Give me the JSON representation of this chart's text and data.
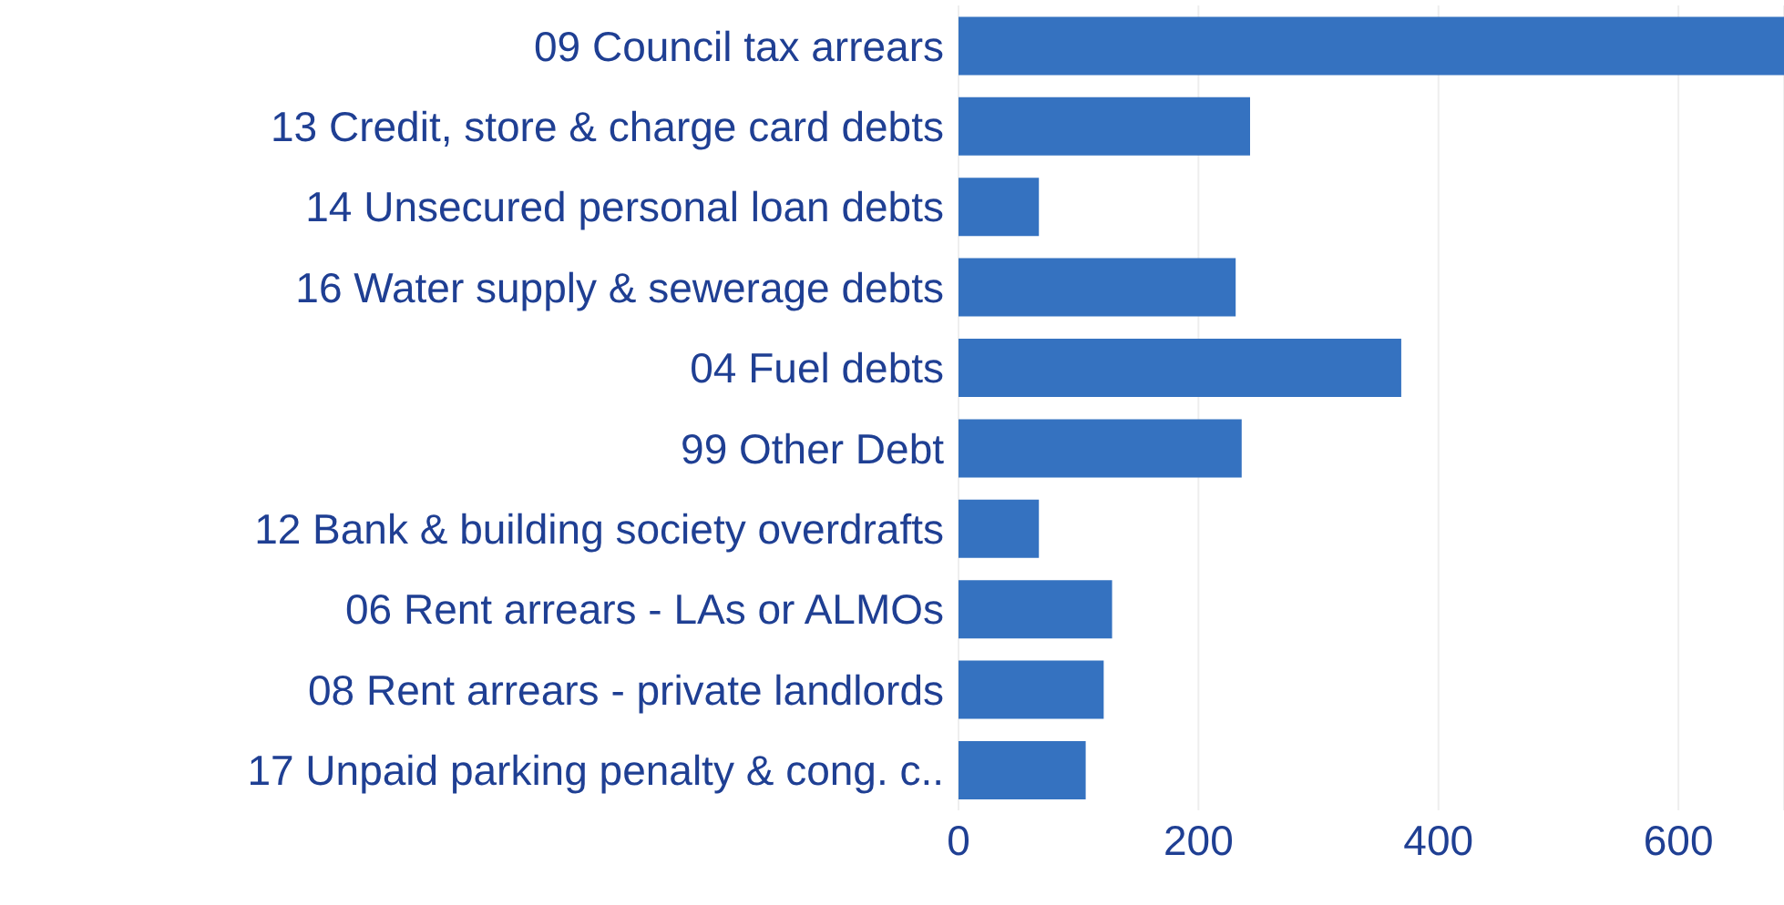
{
  "chart_data": {
    "type": "bar",
    "orientation": "horizontal",
    "categories": [
      "09 Council tax arrears",
      "13 Credit, store & charge card debts",
      "14 Unsecured personal loan debts",
      "16 Water supply & sewerage debts",
      "04 Fuel debts",
      "99 Other Debt",
      "12 Bank & building society overdrafts",
      "06 Rent arrears - LAs or ALMOs",
      "08 Rent arrears - private landlords",
      "17 Unpaid parking penalty & cong. c.."
    ],
    "values": [
      688,
      243,
      67,
      231,
      369,
      236,
      67,
      128,
      121,
      106
    ],
    "color": "#3572c0",
    "xlim": [
      0,
      688
    ],
    "xticks": [
      0,
      200,
      400,
      600
    ],
    "grid": "x"
  }
}
